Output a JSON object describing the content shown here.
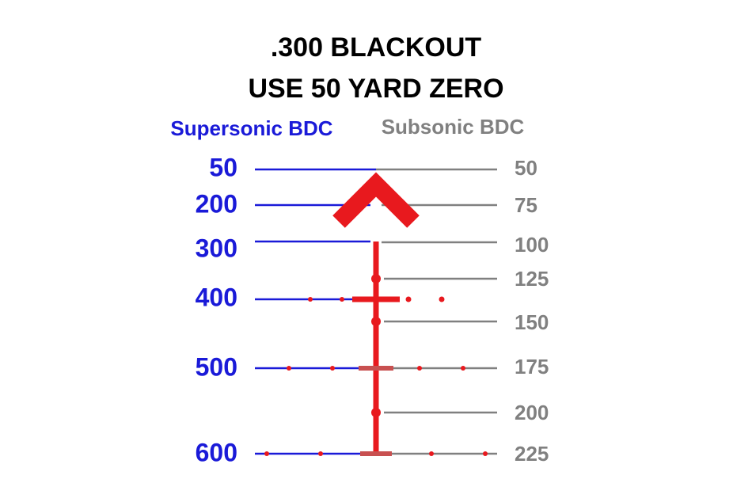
{
  "title": [
    ".300 BLACKOUT",
    "USE 50 YARD ZERO"
  ],
  "supersonic": {
    "heading": "Supersonic BDC",
    "labels": [
      "50",
      "200",
      "300",
      "400",
      "500",
      "600"
    ]
  },
  "subsonic": {
    "heading": "Subsonic BDC",
    "labels": [
      "50",
      "75",
      "100",
      "125",
      "150",
      "175",
      "200",
      "225"
    ]
  }
}
